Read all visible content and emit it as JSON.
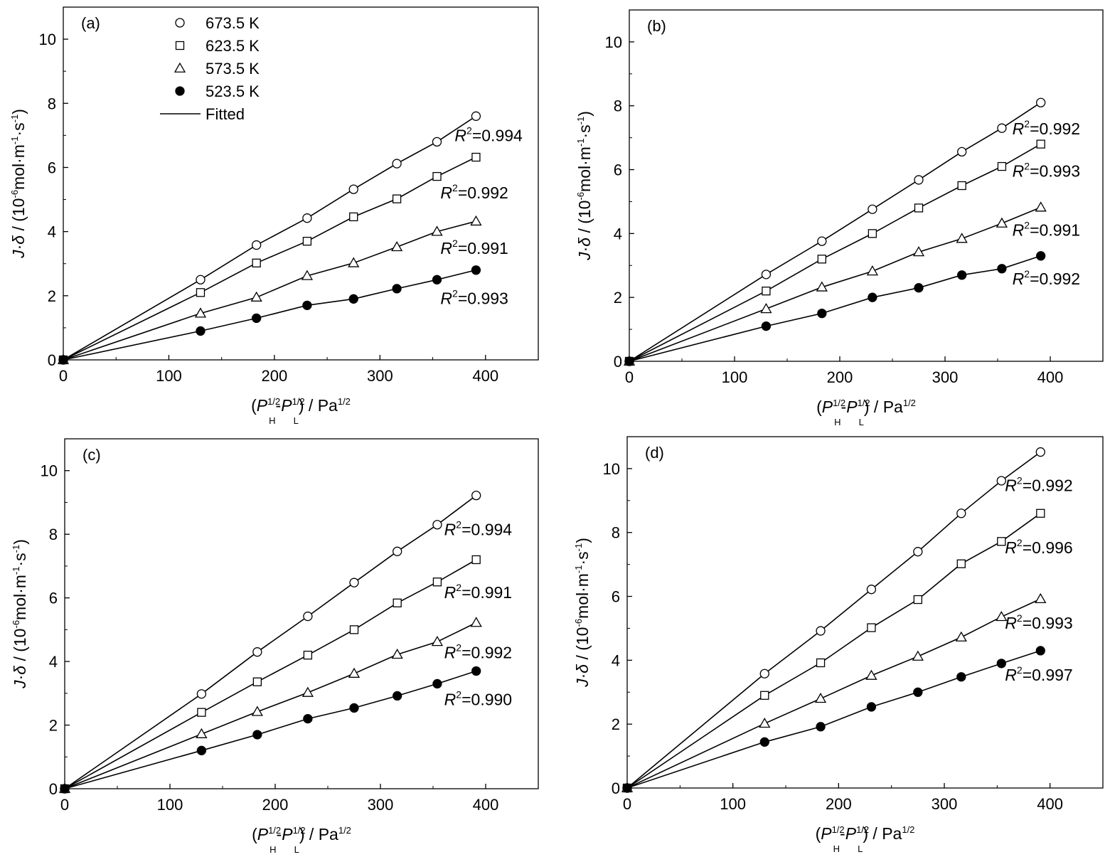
{
  "legend": {
    "entries": [
      {
        "label": "673.5 K",
        "marker": "circle-open"
      },
      {
        "label": "623.5 K",
        "marker": "square-open"
      },
      {
        "label": "573.5 K",
        "marker": "triangle-open"
      },
      {
        "label": "523.5 K",
        "marker": "circle-filled"
      }
    ],
    "fitted_label": "Fitted"
  },
  "chart_data": [
    {
      "type": "scatter",
      "panel_label": "(a)",
      "xlabel": "(P_H^1/2 - P_L^1/2) / Pa^1/2",
      "ylabel": "J·δ / (10^-6 mol·m^-1·s^-1)",
      "xlim": [
        0,
        450
      ],
      "ylim": [
        0,
        11
      ],
      "xticks": [
        0,
        100,
        200,
        300,
        400
      ],
      "yticks": [
        0,
        2,
        4,
        6,
        8,
        10
      ],
      "x": [
        0,
        130,
        183,
        231,
        275,
        316,
        354,
        391
      ],
      "series": [
        {
          "name": "673.5 K",
          "marker": "circle-open",
          "values": [
            0,
            2.5,
            3.58,
            4.42,
            5.32,
            6.12,
            6.8,
            7.6
          ],
          "r2": "0.994"
        },
        {
          "name": "623.5 K",
          "marker": "square-open",
          "values": [
            0,
            2.1,
            3.02,
            3.7,
            4.46,
            5.02,
            5.72,
            6.32
          ],
          "r2": "0.992"
        },
        {
          "name": "573.5 K",
          "marker": "triangle-open",
          "values": [
            0,
            1.45,
            1.95,
            2.62,
            3.02,
            3.52,
            4.0,
            4.32
          ],
          "r2": "0.991"
        },
        {
          "name": "523.5 K",
          "marker": "circle-filled",
          "values": [
            0,
            0.9,
            1.3,
            1.7,
            1.9,
            2.22,
            2.5,
            2.8
          ],
          "r2": "0.993"
        }
      ]
    },
    {
      "type": "scatter",
      "panel_label": "(b)",
      "xlabel": "(P_H^1/2 - P_L^1/2) / Pa^1/2",
      "ylabel": "J·δ / (10^-6 mol·m^-1·s^-1)",
      "xlim": [
        0,
        450
      ],
      "ylim": [
        0,
        11
      ],
      "xticks": [
        0,
        100,
        200,
        300,
        400
      ],
      "yticks": [
        0,
        2,
        4,
        6,
        8,
        10
      ],
      "x": [
        0,
        130,
        183,
        231,
        275,
        316,
        354,
        391
      ],
      "series": [
        {
          "name": "673.5 K",
          "marker": "circle-open",
          "values": [
            0,
            2.72,
            3.76,
            4.76,
            5.68,
            6.56,
            7.3,
            8.1
          ],
          "r2": "0.992"
        },
        {
          "name": "623.5 K",
          "marker": "square-open",
          "values": [
            0,
            2.2,
            3.2,
            4.0,
            4.8,
            5.5,
            6.1,
            6.8
          ],
          "r2": "0.993"
        },
        {
          "name": "573.5 K",
          "marker": "triangle-open",
          "values": [
            0,
            1.64,
            2.32,
            2.82,
            3.42,
            3.84,
            4.32,
            4.82
          ],
          "r2": "0.991"
        },
        {
          "name": "523.5 K",
          "marker": "circle-filled",
          "values": [
            0,
            1.1,
            1.5,
            2.0,
            2.3,
            2.7,
            2.9,
            3.3
          ],
          "r2": "0.992"
        }
      ]
    },
    {
      "type": "scatter",
      "panel_label": "(c)",
      "xlabel": "(P_H^1/2 - P_L^1/2) / Pa^1/2",
      "ylabel": "J·δ / (10^-6 mol·m^-1·s^-1)",
      "xlim": [
        0,
        450
      ],
      "ylim": [
        0,
        11
      ],
      "xticks": [
        0,
        100,
        200,
        300,
        400
      ],
      "yticks": [
        0,
        2,
        4,
        6,
        8,
        10
      ],
      "x": [
        0,
        130,
        183,
        231,
        275,
        316,
        354,
        391
      ],
      "series": [
        {
          "name": "673.5 K",
          "marker": "circle-open",
          "values": [
            0,
            2.98,
            4.3,
            5.42,
            6.48,
            7.46,
            8.3,
            9.22
          ],
          "r2": "0.994"
        },
        {
          "name": "623.5 K",
          "marker": "square-open",
          "values": [
            0,
            2.4,
            3.36,
            4.2,
            5.0,
            5.84,
            6.5,
            7.2
          ],
          "r2": "0.991"
        },
        {
          "name": "573.5 K",
          "marker": "triangle-open",
          "values": [
            0,
            1.72,
            2.42,
            3.02,
            3.62,
            4.22,
            4.62,
            5.22
          ],
          "r2": "0.992"
        },
        {
          "name": "523.5 K",
          "marker": "circle-filled",
          "values": [
            0,
            1.2,
            1.7,
            2.2,
            2.54,
            2.92,
            3.3,
            3.7
          ],
          "r2": "0.990"
        }
      ]
    },
    {
      "type": "scatter",
      "panel_label": "(d)",
      "xlabel": "(P_H^1/2 - P_L^1/2) / Pa^1/2",
      "ylabel": "J·δ / (10^-6 mol·m^-1·s^-1)",
      "xlim": [
        0,
        450
      ],
      "ylim": [
        0,
        11
      ],
      "xticks": [
        0,
        100,
        200,
        300,
        400
      ],
      "yticks": [
        0,
        2,
        4,
        6,
        8,
        10
      ],
      "x": [
        0,
        130,
        183,
        231,
        275,
        316,
        354,
        391
      ],
      "series": [
        {
          "name": "673.5 K",
          "marker": "circle-open",
          "values": [
            0,
            3.58,
            4.92,
            6.22,
            7.4,
            8.6,
            9.62,
            10.52
          ],
          "r2": "0.992"
        },
        {
          "name": "623.5 K",
          "marker": "square-open",
          "values": [
            0,
            2.9,
            3.92,
            5.02,
            5.9,
            7.02,
            7.72,
            8.6
          ],
          "r2": "0.996"
        },
        {
          "name": "573.5 K",
          "marker": "triangle-open",
          "values": [
            0,
            2.02,
            2.8,
            3.52,
            4.12,
            4.72,
            5.36,
            5.92
          ],
          "r2": "0.993"
        },
        {
          "name": "523.5 K",
          "marker": "circle-filled",
          "values": [
            0,
            1.44,
            1.92,
            2.54,
            3.0,
            3.48,
            3.9,
            4.3
          ],
          "r2": "0.997"
        }
      ]
    }
  ]
}
